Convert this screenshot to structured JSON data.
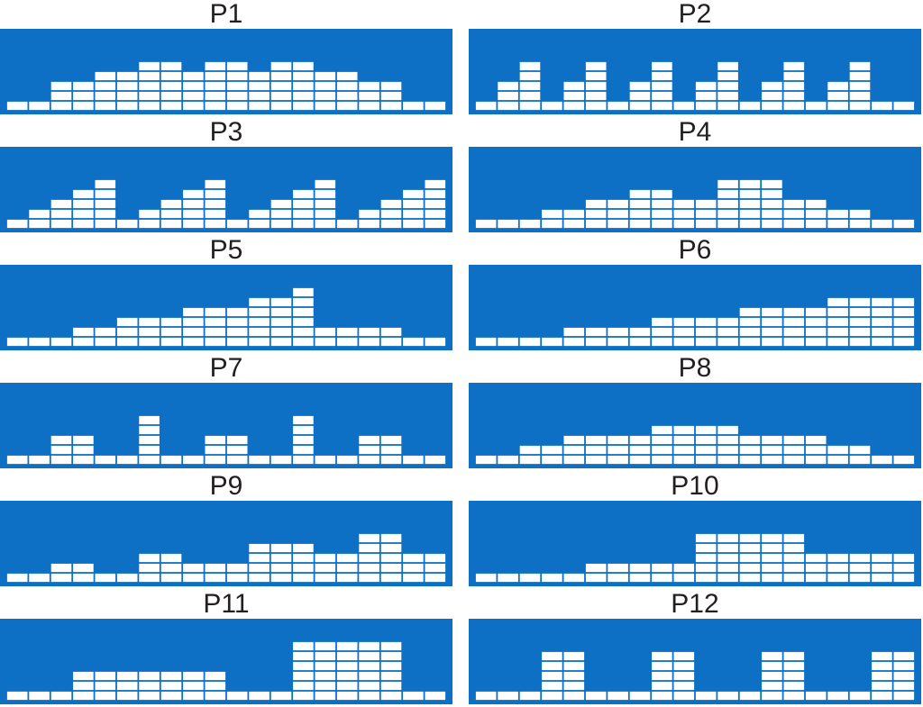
{
  "colors": {
    "background": "#0e70c4",
    "block": "#ffffff",
    "text": "#231f20"
  },
  "chart_data": [
    {
      "type": "bar",
      "title": "P1",
      "x": [
        1,
        2,
        3,
        4,
        5,
        6,
        7,
        8,
        9,
        10,
        11,
        12,
        13,
        14,
        15,
        16,
        17,
        18,
        19,
        20
      ],
      "values": [
        1,
        1,
        3,
        3,
        4,
        4,
        5,
        5,
        4,
        5,
        5,
        4,
        5,
        5,
        4,
        4,
        3,
        3,
        1,
        1
      ],
      "ylim": [
        0,
        8
      ]
    },
    {
      "type": "bar",
      "title": "P2",
      "x": [
        1,
        2,
        3,
        4,
        5,
        6,
        7,
        8,
        9,
        10,
        11,
        12,
        13,
        14,
        15,
        16,
        17,
        18,
        19,
        20
      ],
      "values": [
        1,
        3,
        5,
        1,
        3,
        5,
        1,
        3,
        5,
        1,
        3,
        5,
        1,
        3,
        5,
        1,
        3,
        5,
        1,
        1
      ],
      "ylim": [
        0,
        8
      ]
    },
    {
      "type": "bar",
      "title": "P3",
      "x": [
        1,
        2,
        3,
        4,
        5,
        6,
        7,
        8,
        9,
        10,
        11,
        12,
        13,
        14,
        15,
        16,
        17,
        18,
        19,
        20
      ],
      "values": [
        1,
        2,
        3,
        4,
        5,
        1,
        2,
        3,
        4,
        5,
        1,
        2,
        3,
        4,
        5,
        1,
        2,
        3,
        4,
        5
      ],
      "ylim": [
        0,
        8
      ]
    },
    {
      "type": "bar",
      "title": "P4",
      "x": [
        1,
        2,
        3,
        4,
        5,
        6,
        7,
        8,
        9,
        10,
        11,
        12,
        13,
        14,
        15,
        16,
        17,
        18,
        19,
        20
      ],
      "values": [
        1,
        1,
        1,
        2,
        2,
        3,
        3,
        4,
        4,
        3,
        3,
        5,
        5,
        5,
        3,
        3,
        2,
        2,
        1,
        1
      ],
      "ylim": [
        0,
        8
      ]
    },
    {
      "type": "bar",
      "title": "P5",
      "x": [
        1,
        2,
        3,
        4,
        5,
        6,
        7,
        8,
        9,
        10,
        11,
        12,
        13,
        14,
        15,
        16,
        17,
        18,
        19,
        20
      ],
      "values": [
        1,
        1,
        1,
        2,
        2,
        3,
        3,
        3,
        4,
        4,
        4,
        5,
        5,
        6,
        2,
        2,
        2,
        2,
        1,
        1
      ],
      "ylim": [
        0,
        8
      ]
    },
    {
      "type": "bar",
      "title": "P6",
      "x": [
        1,
        2,
        3,
        4,
        5,
        6,
        7,
        8,
        9,
        10,
        11,
        12,
        13,
        14,
        15,
        16,
        17,
        18,
        19,
        20
      ],
      "values": [
        1,
        1,
        1,
        1,
        2,
        2,
        2,
        2,
        3,
        3,
        3,
        3,
        4,
        4,
        4,
        4,
        5,
        5,
        5,
        5
      ],
      "ylim": [
        0,
        8
      ]
    },
    {
      "type": "bar",
      "title": "P7",
      "x": [
        1,
        2,
        3,
        4,
        5,
        6,
        7,
        8,
        9,
        10,
        11,
        12,
        13,
        14,
        15,
        16,
        17,
        18,
        19,
        20
      ],
      "values": [
        1,
        1,
        3,
        3,
        1,
        1,
        5,
        1,
        1,
        3,
        3,
        1,
        1,
        5,
        1,
        1,
        3,
        3,
        1,
        1
      ],
      "ylim": [
        0,
        8
      ]
    },
    {
      "type": "bar",
      "title": "P8",
      "x": [
        1,
        2,
        3,
        4,
        5,
        6,
        7,
        8,
        9,
        10,
        11,
        12,
        13,
        14,
        15,
        16,
        17,
        18,
        19,
        20
      ],
      "values": [
        1,
        1,
        2,
        2,
        3,
        3,
        3,
        3,
        4,
        4,
        4,
        4,
        3,
        3,
        3,
        3,
        2,
        2,
        1,
        1
      ],
      "ylim": [
        0,
        8
      ]
    },
    {
      "type": "bar",
      "title": "P9",
      "x": [
        1,
        2,
        3,
        4,
        5,
        6,
        7,
        8,
        9,
        10,
        11,
        12,
        13,
        14,
        15,
        16,
        17,
        18,
        19,
        20
      ],
      "values": [
        1,
        1,
        2,
        2,
        1,
        1,
        3,
        3,
        2,
        2,
        2,
        4,
        4,
        4,
        3,
        3,
        5,
        5,
        3,
        3
      ],
      "ylim": [
        0,
        8
      ]
    },
    {
      "type": "bar",
      "title": "P10",
      "x": [
        1,
        2,
        3,
        4,
        5,
        6,
        7,
        8,
        9,
        10,
        11,
        12,
        13,
        14,
        15,
        16,
        17,
        18,
        19,
        20
      ],
      "values": [
        1,
        1,
        1,
        1,
        1,
        2,
        2,
        2,
        2,
        2,
        5,
        5,
        5,
        5,
        5,
        3,
        3,
        3,
        3,
        3
      ],
      "ylim": [
        0,
        8
      ]
    },
    {
      "type": "bar",
      "title": "P11",
      "x": [
        1,
        2,
        3,
        4,
        5,
        6,
        7,
        8,
        9,
        10,
        11,
        12,
        13,
        14,
        15,
        16,
        17,
        18,
        19,
        20
      ],
      "values": [
        1,
        1,
        1,
        3,
        3,
        3,
        3,
        3,
        3,
        3,
        1,
        1,
        1,
        6,
        6,
        6,
        6,
        6,
        1,
        1
      ],
      "ylim": [
        0,
        8
      ]
    },
    {
      "type": "bar",
      "title": "P12",
      "x": [
        1,
        2,
        3,
        4,
        5,
        6,
        7,
        8,
        9,
        10,
        11,
        12,
        13,
        14,
        15,
        16,
        17,
        18,
        19,
        20
      ],
      "values": [
        1,
        1,
        1,
        5,
        5,
        1,
        1,
        1,
        5,
        5,
        1,
        1,
        1,
        5,
        5,
        1,
        1,
        1,
        5,
        5
      ],
      "ylim": [
        0,
        8
      ]
    }
  ]
}
